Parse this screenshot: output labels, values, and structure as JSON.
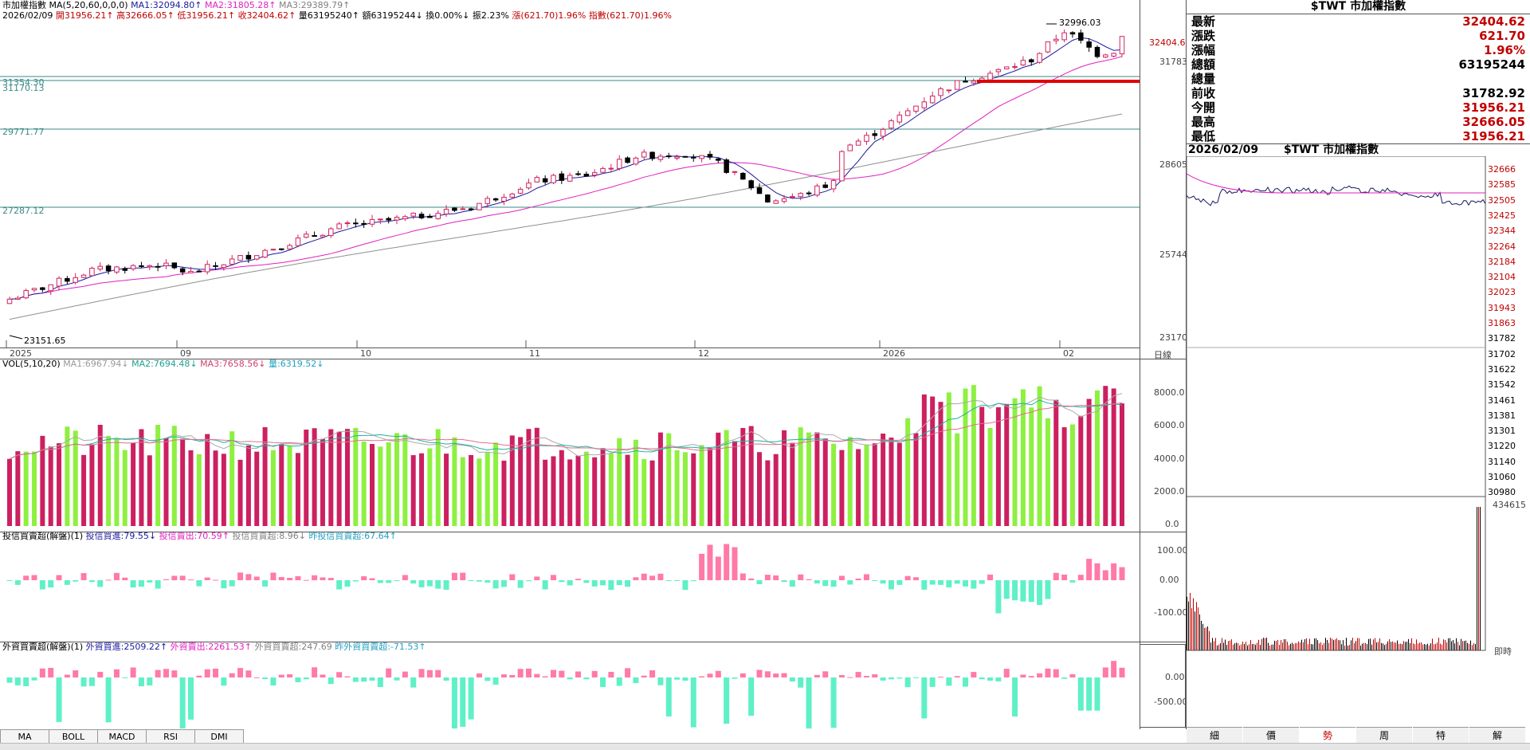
{
  "header": {
    "title": "市加權指數",
    "ma_params": "MA(5,20,60,0,0,0)",
    "ma1": "MA1:32094.80",
    "ma2": "MA2:31805.28",
    "ma3": "MA3:29389.79",
    "date": "2026/02/09",
    "open": "開31956.21",
    "high": "高32666.05",
    "low": "低31956.21",
    "close": "收32404.62",
    "volume": "量63195240",
    "amount": "額63195244",
    "turnover": "換0.00%",
    "amplitude": "振2.23%",
    "change": "漲(621.70)1.96%",
    "index_change": "指數(621.70)1.96%"
  },
  "colors": {
    "up": "#d0245e",
    "down": "#000000",
    "ma1": "#1a1aa0",
    "ma2": "#e020c0",
    "ma3": "#909090",
    "hline": "#3a8a8a",
    "vol_up": "#cc2060",
    "vol_down": "#8ef040",
    "pos": "#ff7aa8",
    "neg": "#5ff0c8",
    "red_line": "#e00000"
  },
  "price_chart": {
    "hlines": [
      "31354.30",
      "31170.13",
      "29771.77",
      "27287.12"
    ],
    "yticks": [
      "32404.6",
      "31783",
      "28605",
      "25744",
      "23170"
    ],
    "xlabels": [
      "2025",
      "09",
      "10",
      "11",
      "12",
      "2026",
      "02"
    ],
    "peak_label": "32996.03",
    "low_label": "23151.65",
    "corner_label": "日線"
  },
  "volume_chart": {
    "title": "VOL(5,10,20)",
    "ma1": "MA1:6967.94",
    "ma2": "MA2:7694.48",
    "ma3": "MA3:7658.56",
    "qty": "量:6319.52",
    "yticks": [
      "8000.0",
      "6000.0",
      "4000.0",
      "2000.0",
      "0.0"
    ]
  },
  "trust_chart": {
    "title": "投信買賣超(解盤)(1)",
    "buy": "投信買進:79.55",
    "sell": "投信賣出:70.59",
    "net": "投信買賣超:8.96",
    "prev": "昨投信買賣超:67.64",
    "yticks": [
      "100.00",
      "0.00",
      "-100.00"
    ]
  },
  "foreign_chart": {
    "title": "外資買賣超(解盤)(1)",
    "buy": "外資買進:2509.22",
    "sell": "外資賣出:2261.53",
    "net": "外資買賣超:247.69",
    "prev": "昨外資買賣超:-71.53",
    "yticks": [
      "0.00",
      "-500.00"
    ]
  },
  "bottom_buttons": [
    "MA",
    "BOLL",
    "MACD",
    "RSI",
    "DMI"
  ],
  "right_panel": {
    "title": "$TWT 市加權指數",
    "rows": [
      {
        "label": "最新",
        "value": "32404.62",
        "color": "#c00000"
      },
      {
        "label": "漲跌",
        "value": "621.70",
        "color": "#c00000"
      },
      {
        "label": "漲幅",
        "value": "1.96%",
        "color": "#c00000"
      },
      {
        "label": "總額",
        "value": "63195244",
        "color": "#000000"
      },
      {
        "label": "總量",
        "value": "",
        "color": "#000000"
      },
      {
        "label": "前收",
        "value": "31782.92",
        "color": "#000000"
      },
      {
        "label": "今開",
        "value": "31956.21",
        "color": "#c00000"
      },
      {
        "label": "最高",
        "value": "32666.05",
        "color": "#c00000"
      },
      {
        "label": "最低",
        "value": "31956.21",
        "color": "#c00000"
      }
    ],
    "intraday_date": "2026/02/09",
    "intraday_title": "$TWT 市加權指數",
    "intraday_red_ticks": [
      "32666",
      "32585",
      "32505",
      "32425",
      "32344",
      "32264",
      "32184",
      "32104",
      "32023",
      "31943",
      "31863"
    ],
    "intraday_black_ticks": [
      "31782",
      "31702",
      "31622",
      "31542",
      "31461",
      "31381",
      "31301",
      "31220",
      "31140",
      "31060",
      "30980"
    ],
    "vol_top": "434615",
    "time_label": "即時",
    "tabs": [
      "細",
      "價",
      "勢",
      "周",
      "特",
      "解"
    ],
    "active_tab": "勢"
  }
}
